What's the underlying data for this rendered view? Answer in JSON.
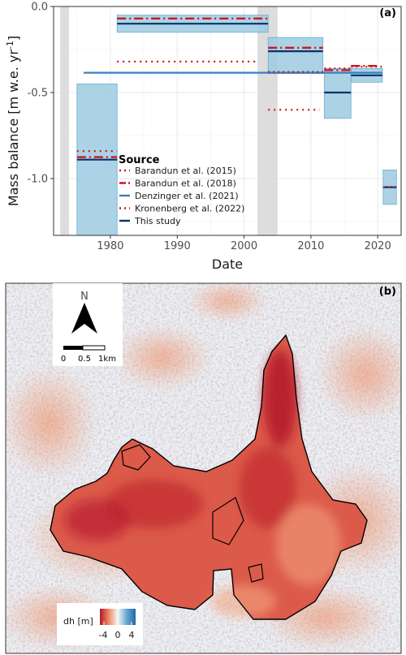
{
  "panel_a": {
    "tag": "(a)",
    "chart_data": {
      "type": "line",
      "xlabel": "Date",
      "ylabel": "Mass balance [m w.e. yr",
      "ylabel_sup": "-1",
      "ylabel_end": "]",
      "xlim": [
        1971.5,
        2023.5
      ],
      "ylim": [
        -1.33,
        0.0
      ],
      "x_ticks": [
        1980,
        1990,
        2000,
        2010,
        2020
      ],
      "x_tick_labels": [
        "1980",
        "1990",
        "2000",
        "2010",
        "2020"
      ],
      "y_ticks": [
        0.0,
        -0.5,
        -1.0
      ],
      "y_tick_labels": [
        "0.0",
        "-0.5",
        "-1.0"
      ],
      "grid": true,
      "legend": {
        "title": "Source",
        "position": "lower-center",
        "entries": [
          {
            "label": "Barandun et al. (2015)",
            "style": "dotted",
            "color": "#cb181d"
          },
          {
            "label": "Barandun et al. (2018)",
            "style": "dash",
            "color": "#cb181d"
          },
          {
            "label": "Denzinger et al. (2021)",
            "style": "solid",
            "color": "#3a7fc1"
          },
          {
            "label": "Kronenberg et al. (2022)",
            "style": "dotted",
            "color": "#cb181d"
          },
          {
            "label": "This study",
            "style": "solid",
            "color": "#08306b"
          }
        ]
      },
      "gap_periods": [
        {
          "x0": 1972.5,
          "x1": 1973.8
        },
        {
          "x0": 2002.0,
          "x1": 2005.0
        }
      ],
      "this_study": [
        {
          "x0": 1975.0,
          "x1": 1981.0,
          "value": -0.89,
          "lo": -1.33,
          "hi": -0.45
        },
        {
          "x0": 1981.0,
          "x1": 2003.6,
          "value": -0.1,
          "lo": -0.15,
          "hi": -0.05
        },
        {
          "x0": 2003.6,
          "x1": 2011.8,
          "value": -0.26,
          "lo": -0.39,
          "hi": -0.18
        },
        {
          "x0": 2012.0,
          "x1": 2016.0,
          "value": -0.5,
          "lo": -0.65,
          "hi": -0.36
        },
        {
          "x0": 2016.0,
          "x1": 2020.7,
          "value": -0.4,
          "lo": -0.44,
          "hi": -0.36
        },
        {
          "x0": 2020.8,
          "x1": 2022.8,
          "value": -1.05,
          "lo": -1.15,
          "hi": -0.95
        }
      ],
      "denzinger_2021": [
        {
          "x0": 1976.0,
          "x1": 2020.7,
          "value": -0.385
        }
      ],
      "barandun_2015_dotted": [
        {
          "x0": 1975.0,
          "x1": 1981.0,
          "value": -0.84
        },
        {
          "x0": 1981.0,
          "x1": 2001.8,
          "value": -0.32
        },
        {
          "x0": 2003.6,
          "x1": 2011.3,
          "value": -0.6
        }
      ],
      "barandun_2018_dash": [
        {
          "x0": 1975.0,
          "x1": 1981.0,
          "value": -0.875
        },
        {
          "x0": 1981.0,
          "x1": 2003.6,
          "value": -0.07
        },
        {
          "x0": 2003.6,
          "x1": 2011.8,
          "value": -0.24
        },
        {
          "x0": 2012.0,
          "x1": 2016.0,
          "value": -0.37
        },
        {
          "x0": 2016.0,
          "x1": 2019.9,
          "value": -0.345
        }
      ],
      "kronenberg_2022_dotted": [
        {
          "x0": 2003.6,
          "x1": 2012.0,
          "value": -0.38
        },
        {
          "x0": 2012.0,
          "x1": 2016.0,
          "value": -0.36
        },
        {
          "x0": 2016.0,
          "x1": 2020.7,
          "value": -0.35
        },
        {
          "x0": 2020.8,
          "x1": 2022.8,
          "value": -1.05
        }
      ]
    }
  },
  "panel_b": {
    "tag": "(b)",
    "north_label": "N",
    "scale_labels": [
      "0",
      "0.5",
      "1km"
    ],
    "colorbar": {
      "label": "dh [m]",
      "ticks": [
        "-4",
        "0",
        "4"
      ],
      "colors": [
        "#b2182b",
        "#ef8a62",
        "#f7f7f7",
        "#67a9cf",
        "#2166ac"
      ]
    },
    "colors": {
      "strong_loss": "#b2182b",
      "loss": "#e7806a",
      "background": "#eef2f6",
      "gain": "#4a8cc8",
      "outline": "#000000"
    }
  }
}
